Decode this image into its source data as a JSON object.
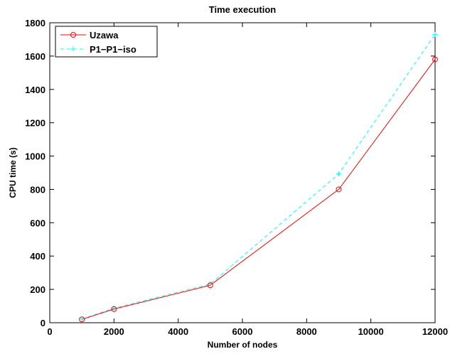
{
  "chart_data": {
    "type": "line",
    "title": "Time execution",
    "xlabel": "Number of nodes",
    "ylabel": "CPU time (s)",
    "xlim": [
      0,
      12000
    ],
    "ylim": [
      0,
      1800
    ],
    "xticks": [
      "0",
      "2000",
      "4000",
      "6000",
      "8000",
      "10000",
      "12000"
    ],
    "yticks": [
      "0",
      "200",
      "400",
      "600",
      "800",
      "1000",
      "1200",
      "1400",
      "1600",
      "1800"
    ],
    "grid": false,
    "legend_position": "top-left",
    "series": [
      {
        "name": "Uzawa",
        "color": "#ff0000",
        "line_style": "solid",
        "marker": "circle",
        "x": [
          1000,
          2000,
          5000,
          9000,
          12000
        ],
        "y": [
          20,
          82,
          225,
          800,
          1580
        ]
      },
      {
        "name": "P1−P1−iso",
        "color": "#00ffff",
        "line_style": "dashed",
        "marker": "plus",
        "x": [
          1000,
          2000,
          5000,
          9000,
          12000
        ],
        "y": [
          22,
          87,
          232,
          893,
          1730
        ]
      }
    ]
  }
}
